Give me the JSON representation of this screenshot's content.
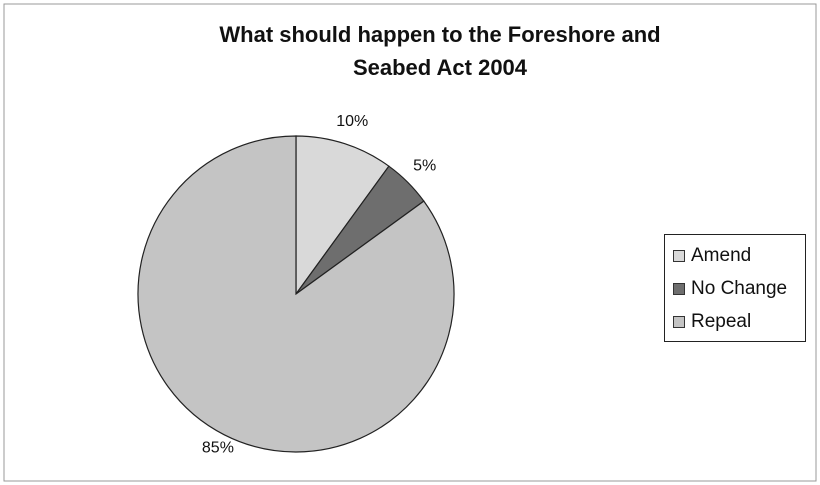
{
  "chart_data": {
    "type": "pie",
    "title_line1": "What should happen to the Foreshore and",
    "title_line2": "Seabed Act 2004",
    "categories": [
      "Amend",
      "No Change",
      "Repeal"
    ],
    "values": [
      10,
      5,
      85
    ],
    "labels": [
      "10%",
      "5%",
      "85%"
    ],
    "colors": [
      "#d9d9d9",
      "#6e6e6e",
      "#c4c4c4"
    ],
    "legend_position": "right"
  }
}
